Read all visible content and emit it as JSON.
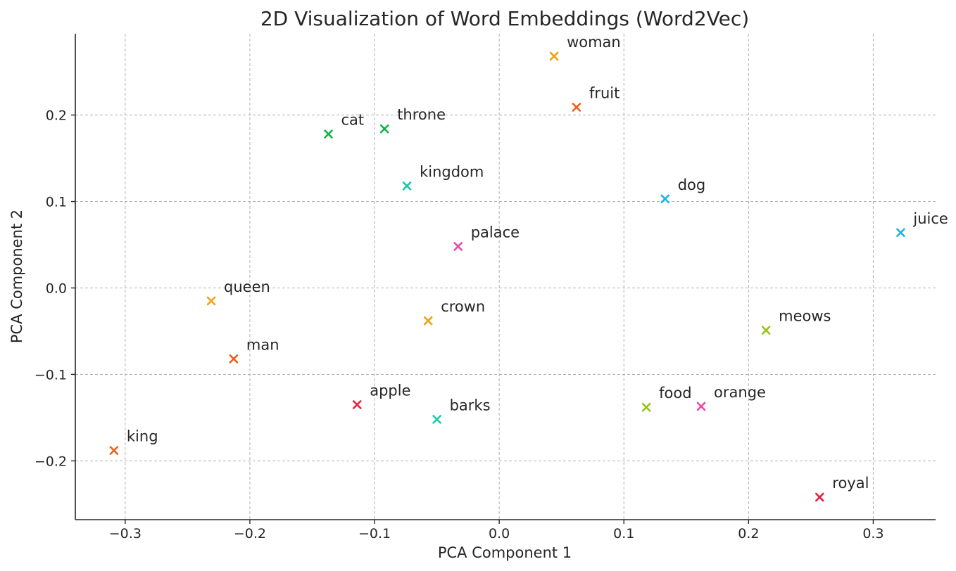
{
  "chart_data": {
    "type": "scatter",
    "title": "2D Visualization of Word Embeddings (Word2Vec)",
    "xlabel": "PCA Component 1",
    "ylabel": "PCA Component 2",
    "xlim": [
      -0.34,
      0.35
    ],
    "ylim": [
      -0.268,
      0.294
    ],
    "xticks": [
      -0.3,
      -0.2,
      -0.1,
      0.0,
      0.1,
      0.2,
      0.3
    ],
    "xtick_labels": [
      "−0.3",
      "−0.2",
      "−0.1",
      "0.0",
      "0.1",
      "0.2",
      "0.3"
    ],
    "yticks": [
      -0.2,
      -0.1,
      0.0,
      0.1,
      0.2
    ],
    "ytick_labels": [
      "−0.2",
      "−0.1",
      "0.0",
      "0.1",
      "0.2"
    ],
    "grid": true,
    "marker": "x",
    "points": [
      {
        "label": "woman",
        "x": 0.044,
        "y": 0.268,
        "color": "#f4a012"
      },
      {
        "label": "fruit",
        "x": 0.062,
        "y": 0.209,
        "color": "#e8601b"
      },
      {
        "label": "cat",
        "x": -0.137,
        "y": 0.178,
        "color": "#0bb34a"
      },
      {
        "label": "throne",
        "x": -0.092,
        "y": 0.184,
        "color": "#0bb34a"
      },
      {
        "label": "kingdom",
        "x": -0.074,
        "y": 0.118,
        "color": "#17c9ad"
      },
      {
        "label": "dog",
        "x": 0.133,
        "y": 0.103,
        "color": "#1fb2ea"
      },
      {
        "label": "juice",
        "x": 0.322,
        "y": 0.064,
        "color": "#1fb2ea"
      },
      {
        "label": "palace",
        "x": -0.033,
        "y": 0.048,
        "color": "#e84aaf"
      },
      {
        "label": "queen",
        "x": -0.231,
        "y": -0.015,
        "color": "#f4a012"
      },
      {
        "label": "crown",
        "x": -0.057,
        "y": -0.038,
        "color": "#f4a012"
      },
      {
        "label": "meows",
        "x": 0.214,
        "y": -0.049,
        "color": "#97c21b"
      },
      {
        "label": "man",
        "x": -0.213,
        "y": -0.082,
        "color": "#e8601b"
      },
      {
        "label": "apple",
        "x": -0.114,
        "y": -0.135,
        "color": "#e8203f"
      },
      {
        "label": "barks",
        "x": -0.05,
        "y": -0.152,
        "color": "#17c9ad"
      },
      {
        "label": "food",
        "x": 0.118,
        "y": -0.138,
        "color": "#97c21b"
      },
      {
        "label": "orange",
        "x": 0.162,
        "y": -0.137,
        "color": "#e84aaf"
      },
      {
        "label": "king",
        "x": -0.309,
        "y": -0.188,
        "color": "#e8601b"
      },
      {
        "label": "royal",
        "x": 0.257,
        "y": -0.242,
        "color": "#e8203f"
      }
    ]
  }
}
